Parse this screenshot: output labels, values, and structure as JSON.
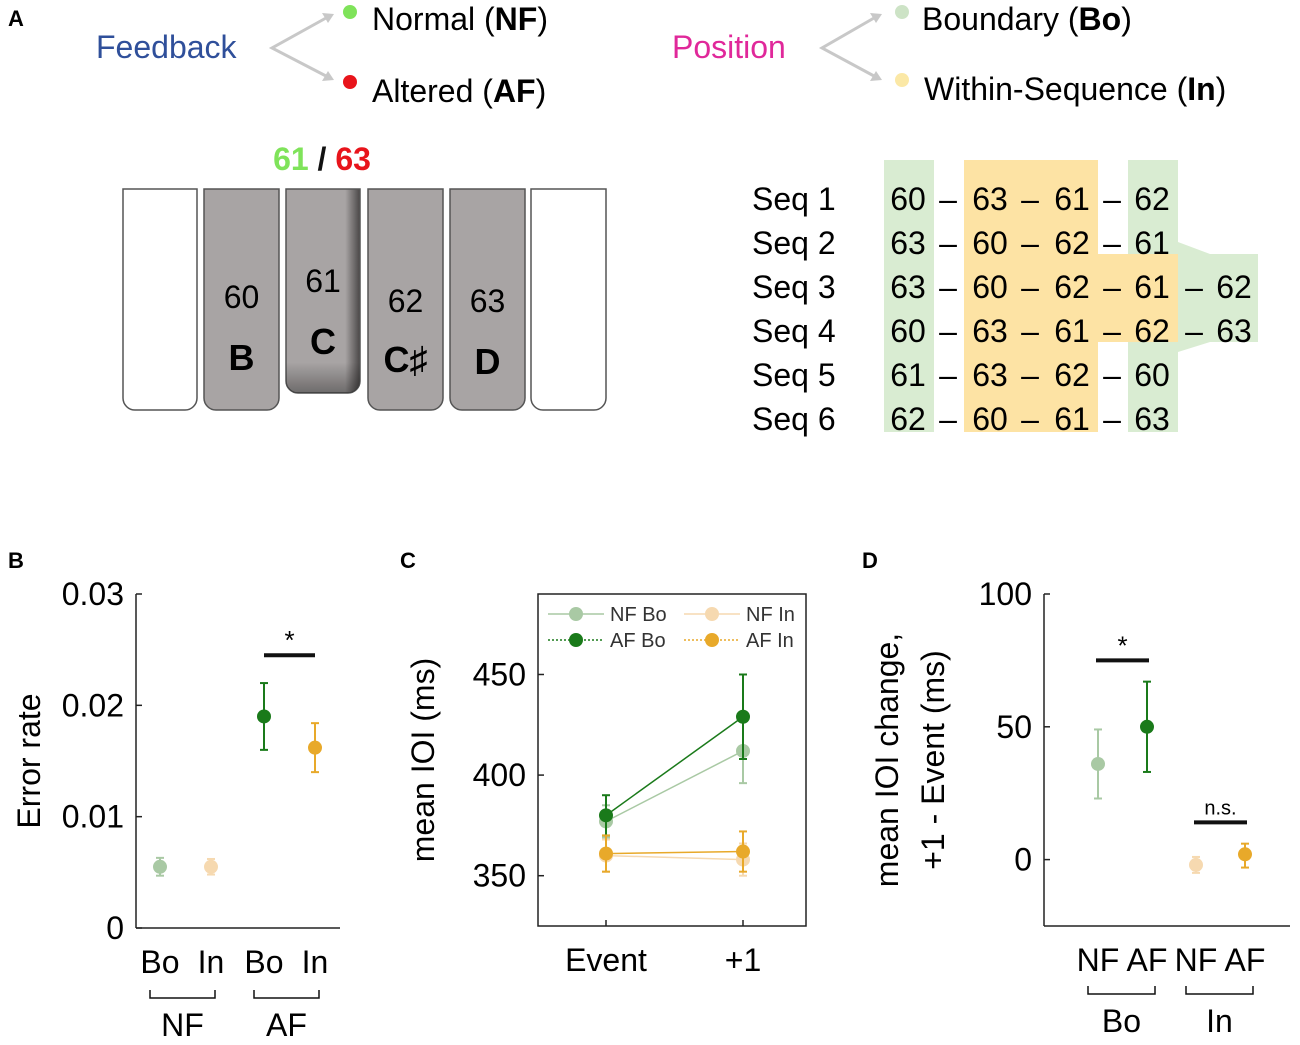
{
  "colors": {
    "nf_bo": "#a9c9a4",
    "af_bo": "#1a7a1a",
    "nf_in": "#f6d9b0",
    "af_in": "#e8a92a",
    "feedback_label": "#2f4f9a",
    "position_label": "#e0289a",
    "normal_dot": "#7fe35a",
    "altered_dot": "#e8141b",
    "boundary_dot": "#cde3c6",
    "within_dot": "#fbe8a6",
    "key_gray": "#a8a4a4",
    "boundary_band": "#d9ecd2",
    "within_band": "#fde3a4"
  },
  "panel_a": {
    "label": "A",
    "feedback": {
      "label": "Feedback",
      "normal": {
        "pre": "Normal (",
        "bold": "NF",
        "post": ")"
      },
      "altered": {
        "pre": "Altered (",
        "bold": "AF",
        "post": ")"
      }
    },
    "position": {
      "label": "Position",
      "boundary": {
        "pre": "Boundary (",
        "bold": "Bo",
        "post": ")"
      },
      "within": {
        "pre": "Within-Sequence (",
        "bold": "In",
        "post": ")"
      }
    },
    "keyboard": {
      "top_green": "61",
      "top_sep": " / ",
      "top_red": "63",
      "keys": [
        {
          "num": "60",
          "note": "B"
        },
        {
          "num": "61",
          "note": "C"
        },
        {
          "num": "62",
          "note": "C♯"
        },
        {
          "num": "63",
          "note": "D"
        }
      ]
    },
    "sequences": [
      {
        "label": "Seq 1",
        "notes": [
          "60",
          "63",
          "61",
          "62"
        ]
      },
      {
        "label": "Seq 2",
        "notes": [
          "63",
          "60",
          "62",
          "61"
        ]
      },
      {
        "label": "Seq 3",
        "notes": [
          "63",
          "60",
          "62",
          "61",
          "62"
        ]
      },
      {
        "label": "Seq 4",
        "notes": [
          "60",
          "63",
          "61",
          "62",
          "63"
        ]
      },
      {
        "label": "Seq 5",
        "notes": [
          "61",
          "63",
          "62",
          "60"
        ]
      },
      {
        "label": "Seq 6",
        "notes": [
          "62",
          "60",
          "61",
          "63"
        ]
      }
    ],
    "dash": "–"
  },
  "chart_data": [
    {
      "panel": "B",
      "type": "scatter",
      "ylabel": "Error rate",
      "ylim": [
        0,
        0.03
      ],
      "yticks": [
        "0",
        "0.01",
        "0.02",
        "0.03"
      ],
      "ytick_values": [
        0,
        0.01,
        0.02,
        0.03
      ],
      "categories": [
        "Bo",
        "In",
        "Bo",
        "In"
      ],
      "groups": [
        {
          "label": "NF",
          "span": [
            0,
            1
          ]
        },
        {
          "label": "AF",
          "span": [
            2,
            3
          ]
        }
      ],
      "points": [
        {
          "name": "NF Bo",
          "value": 0.0055,
          "lo": 0.0047,
          "hi": 0.0063,
          "color": "nf_bo"
        },
        {
          "name": "NF In",
          "value": 0.0055,
          "lo": 0.0048,
          "hi": 0.0062,
          "color": "nf_in"
        },
        {
          "name": "AF Bo",
          "value": 0.019,
          "lo": 0.016,
          "hi": 0.022,
          "color": "af_bo"
        },
        {
          "name": "AF In",
          "value": 0.0162,
          "lo": 0.014,
          "hi": 0.0184,
          "color": "af_in"
        }
      ],
      "annotations": [
        {
          "text": "*",
          "between": [
            2,
            3
          ],
          "level": 0.0245
        }
      ]
    },
    {
      "panel": "C",
      "type": "line",
      "ylabel": "mean IOI (ms)",
      "ylim": [
        325,
        490
      ],
      "yticks": [
        "350",
        "400",
        "450"
      ],
      "ytick_values": [
        350,
        400,
        450
      ],
      "categories": [
        "Event",
        "+1"
      ],
      "legend": [
        "NF Bo",
        "NF In",
        "AF Bo",
        "AF In"
      ],
      "legend_position": "top",
      "series": [
        {
          "name": "NF Bo",
          "values": [
            377,
            412
          ],
          "lo": [
            369,
            396
          ],
          "hi": [
            385,
            428
          ],
          "color": "nf_bo"
        },
        {
          "name": "NF In",
          "values": [
            360,
            358
          ],
          "lo": [
            352,
            350
          ],
          "hi": [
            368,
            366
          ],
          "color": "nf_in"
        },
        {
          "name": "AF Bo",
          "values": [
            380,
            429
          ],
          "lo": [
            370,
            408
          ],
          "hi": [
            390,
            450
          ],
          "color": "af_bo"
        },
        {
          "name": "AF In",
          "values": [
            361,
            362
          ],
          "lo": [
            352,
            352
          ],
          "hi": [
            370,
            372
          ],
          "color": "af_in"
        }
      ]
    },
    {
      "panel": "D",
      "type": "scatter",
      "ylabel_line1": "mean IOI change,",
      "ylabel_line2": "+1 - Event (ms)",
      "ylim": [
        -25,
        100
      ],
      "yticks": [
        "0",
        "50",
        "100"
      ],
      "ytick_values": [
        0,
        50,
        100
      ],
      "categories": [
        "NF",
        "AF",
        "NF",
        "AF"
      ],
      "groups": [
        {
          "label": "Bo",
          "span": [
            0,
            1
          ]
        },
        {
          "label": "In",
          "span": [
            2,
            3
          ]
        }
      ],
      "points": [
        {
          "name": "Bo NF",
          "value": 36,
          "lo": 23,
          "hi": 49,
          "color": "nf_bo"
        },
        {
          "name": "Bo AF",
          "value": 50,
          "lo": 33,
          "hi": 67,
          "color": "af_bo"
        },
        {
          "name": "In NF",
          "value": -2,
          "lo": -5,
          "hi": 1,
          "color": "nf_in"
        },
        {
          "name": "In AF",
          "value": 2,
          "lo": -3,
          "hi": 6,
          "color": "af_in"
        }
      ],
      "annotations": [
        {
          "text": "*",
          "between": [
            0,
            1
          ],
          "level": 75
        },
        {
          "text": "n.s.",
          "between": [
            2,
            3
          ],
          "level": 14
        }
      ]
    }
  ]
}
